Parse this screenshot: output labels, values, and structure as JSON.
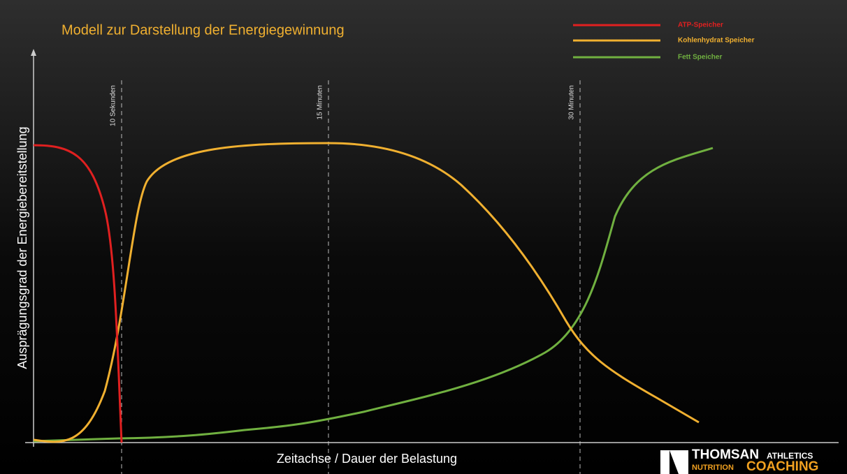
{
  "title": "Modell zur Darstellung der Energiegewinnung",
  "legend": [
    "ATP-Speicher",
    "Kohlenhydrat Speicher",
    "Fett Speicher"
  ],
  "y_axis_label": "Ausprägungsgrad der Energiebereitstellung",
  "x_axis_label": "Zeitachse / Dauer der Belastung",
  "markers": [
    "10 Sekunden",
    "15 Minuten",
    "30 Minuten"
  ],
  "logo": {
    "name": "THOMSAN",
    "line1": "ATHLETICS",
    "line2": "NUTRITION",
    "line3": "COACHING"
  }
}
